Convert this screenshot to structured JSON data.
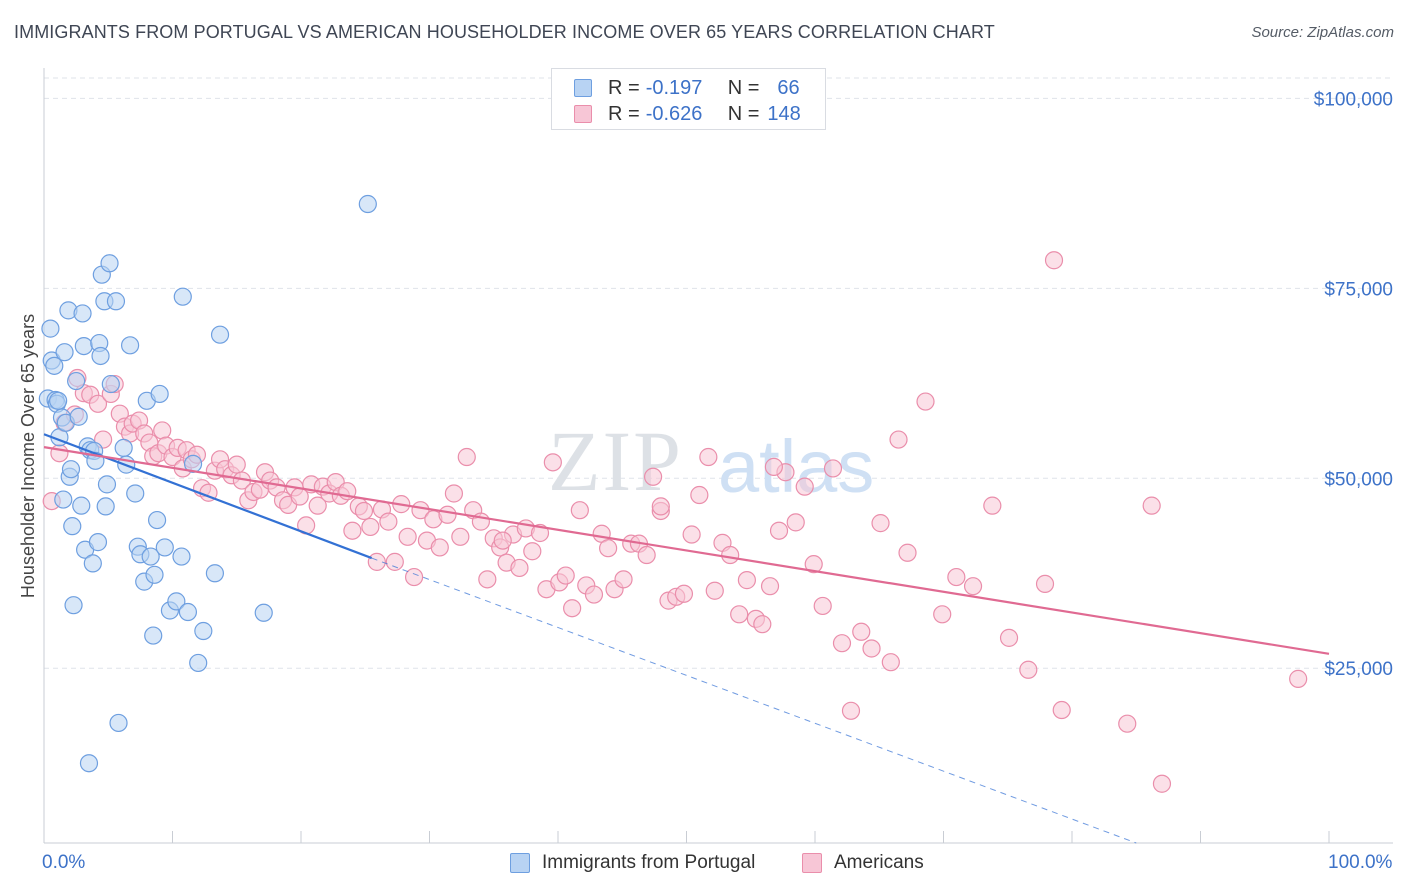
{
  "title": "IMMIGRANTS FROM PORTUGAL VS AMERICAN HOUSEHOLDER INCOME OVER 65 YEARS CORRELATION CHART",
  "source": "Source: ZipAtlas.com",
  "watermark": {
    "zip": "ZIP",
    "atlas": "atlas"
  },
  "legend_top": {
    "rows": [
      {
        "r_label": "R =",
        "r_value": "-0.197",
        "n_label": "N =",
        "n_value": "66"
      },
      {
        "r_label": "R =",
        "r_value": "-0.626",
        "n_label": "N =",
        "n_value": "148"
      }
    ]
  },
  "legend_bottom": {
    "items": [
      {
        "label": "Immigrants from Portugal"
      },
      {
        "label": "Americans"
      }
    ]
  },
  "colors": {
    "blue_fill": "#b8d3f3",
    "blue_stroke": "#6e9fe0",
    "blue_line": "#3371d4",
    "pink_fill": "#f7c6d6",
    "pink_stroke": "#ea8eab",
    "pink_line": "#e06a92",
    "axis_label": "#3d72c8",
    "grid": "#dfe3ea"
  },
  "chart_data": {
    "type": "scatter",
    "title": "IMMIGRANTS FROM PORTUGAL VS AMERICAN HOUSEHOLDER INCOME OVER 65 YEARS CORRELATION CHART",
    "xlabel": "",
    "ylabel": "Householder Income Over 65 years",
    "xlim": [
      0,
      100
    ],
    "ylim": [
      2000,
      104000
    ],
    "x_tick_labels": [
      "0.0%",
      "100.0%"
    ],
    "y_ticks": [
      25000,
      50000,
      75000,
      100000
    ],
    "y_tick_labels": [
      "$25,000",
      "$50,000",
      "$75,000",
      "$100,000"
    ],
    "grid": true,
    "legend_position": "bottom",
    "series": [
      {
        "name": "Immigrants from Portugal",
        "R": -0.197,
        "N": 66,
        "trend": {
          "x": [
            0,
            25.5
          ],
          "y": [
            55800,
            39500
          ],
          "dashed_to": [
            85,
            2000
          ]
        },
        "points": [
          [
            0.3,
            60500
          ],
          [
            0.5,
            69700
          ],
          [
            0.6,
            65500
          ],
          [
            0.8,
            64800
          ],
          [
            0.9,
            60300
          ],
          [
            1.0,
            59800
          ],
          [
            1.1,
            60200
          ],
          [
            1.2,
            55400
          ],
          [
            1.4,
            58000
          ],
          [
            1.5,
            47200
          ],
          [
            1.6,
            66600
          ],
          [
            1.7,
            57300
          ],
          [
            1.9,
            72100
          ],
          [
            2.0,
            50200
          ],
          [
            2.1,
            51200
          ],
          [
            2.2,
            43700
          ],
          [
            2.3,
            33300
          ],
          [
            2.5,
            62800
          ],
          [
            2.7,
            58100
          ],
          [
            2.9,
            46400
          ],
          [
            3.0,
            71700
          ],
          [
            3.1,
            67400
          ],
          [
            3.2,
            40600
          ],
          [
            3.4,
            54200
          ],
          [
            3.5,
            12500
          ],
          [
            3.6,
            53700
          ],
          [
            3.8,
            38800
          ],
          [
            3.9,
            53600
          ],
          [
            4.0,
            52300
          ],
          [
            4.2,
            41600
          ],
          [
            4.3,
            67800
          ],
          [
            4.4,
            66100
          ],
          [
            4.5,
            76800
          ],
          [
            4.7,
            73300
          ],
          [
            4.8,
            46300
          ],
          [
            4.9,
            49200
          ],
          [
            5.1,
            78300
          ],
          [
            5.2,
            62400
          ],
          [
            5.6,
            73300
          ],
          [
            5.8,
            17800
          ],
          [
            6.2,
            54000
          ],
          [
            6.4,
            51800
          ],
          [
            6.7,
            67500
          ],
          [
            7.1,
            48000
          ],
          [
            7.3,
            41000
          ],
          [
            7.5,
            40000
          ],
          [
            7.8,
            36400
          ],
          [
            8.0,
            60200
          ],
          [
            8.3,
            39700
          ],
          [
            8.5,
            29300
          ],
          [
            8.6,
            37300
          ],
          [
            8.8,
            44500
          ],
          [
            9.0,
            61100
          ],
          [
            9.4,
            40900
          ],
          [
            9.8,
            32600
          ],
          [
            10.3,
            33800
          ],
          [
            10.7,
            39700
          ],
          [
            11.2,
            32400
          ],
          [
            11.6,
            51900
          ],
          [
            12.0,
            25700
          ],
          [
            12.4,
            29900
          ],
          [
            13.3,
            37500
          ],
          [
            13.7,
            68900
          ],
          [
            17.1,
            32300
          ],
          [
            25.2,
            86100
          ],
          [
            10.8,
            73900
          ]
        ]
      },
      {
        "name": "Americans",
        "R": -0.626,
        "N": 148,
        "trend": {
          "x": [
            0,
            100
          ],
          "y": [
            54100,
            26900
          ]
        },
        "points": [
          [
            0.6,
            47000
          ],
          [
            1.2,
            53300
          ],
          [
            1.6,
            57300
          ],
          [
            2.4,
            58400
          ],
          [
            2.6,
            63200
          ],
          [
            3.1,
            61200
          ],
          [
            3.6,
            61000
          ],
          [
            4.2,
            59800
          ],
          [
            4.6,
            55100
          ],
          [
            5.2,
            61100
          ],
          [
            5.5,
            62400
          ],
          [
            5.9,
            58500
          ],
          [
            6.3,
            56800
          ],
          [
            6.7,
            55900
          ],
          [
            6.9,
            57200
          ],
          [
            7.4,
            57600
          ],
          [
            7.8,
            55900
          ],
          [
            8.2,
            54700
          ],
          [
            8.5,
            52900
          ],
          [
            8.9,
            53300
          ],
          [
            9.2,
            56300
          ],
          [
            9.5,
            54300
          ],
          [
            10.0,
            52800
          ],
          [
            10.4,
            54000
          ],
          [
            10.8,
            51300
          ],
          [
            11.1,
            53700
          ],
          [
            11.5,
            52500
          ],
          [
            11.9,
            53100
          ],
          [
            12.3,
            48700
          ],
          [
            12.8,
            48100
          ],
          [
            13.3,
            51000
          ],
          [
            13.7,
            52500
          ],
          [
            14.1,
            51200
          ],
          [
            14.6,
            50400
          ],
          [
            15.0,
            51800
          ],
          [
            15.4,
            49700
          ],
          [
            15.9,
            47100
          ],
          [
            16.3,
            48200
          ],
          [
            16.8,
            48500
          ],
          [
            17.2,
            50800
          ],
          [
            17.6,
            49700
          ],
          [
            18.1,
            48800
          ],
          [
            18.6,
            47100
          ],
          [
            19.0,
            46500
          ],
          [
            19.5,
            48800
          ],
          [
            19.9,
            47600
          ],
          [
            20.4,
            43800
          ],
          [
            20.8,
            49200
          ],
          [
            21.3,
            46400
          ],
          [
            21.7,
            48900
          ],
          [
            22.2,
            48000
          ],
          [
            22.7,
            49500
          ],
          [
            23.1,
            47700
          ],
          [
            23.6,
            48300
          ],
          [
            24.0,
            43100
          ],
          [
            24.5,
            46300
          ],
          [
            24.9,
            45700
          ],
          [
            25.4,
            43600
          ],
          [
            25.9,
            39000
          ],
          [
            26.3,
            45900
          ],
          [
            26.8,
            44300
          ],
          [
            27.3,
            39000
          ],
          [
            27.8,
            46600
          ],
          [
            28.3,
            42300
          ],
          [
            28.8,
            37000
          ],
          [
            29.3,
            45800
          ],
          [
            29.8,
            41800
          ],
          [
            30.3,
            44600
          ],
          [
            30.8,
            40900
          ],
          [
            31.4,
            45200
          ],
          [
            31.9,
            48000
          ],
          [
            32.4,
            42300
          ],
          [
            32.9,
            52800
          ],
          [
            33.4,
            45800
          ],
          [
            34.0,
            44300
          ],
          [
            34.5,
            36700
          ],
          [
            35.0,
            42100
          ],
          [
            35.5,
            40900
          ],
          [
            36.0,
            38900
          ],
          [
            36.5,
            42600
          ],
          [
            37.0,
            38200
          ],
          [
            37.5,
            43400
          ],
          [
            38.0,
            40400
          ],
          [
            38.6,
            42800
          ],
          [
            39.1,
            35400
          ],
          [
            39.6,
            52100
          ],
          [
            40.1,
            36300
          ],
          [
            40.6,
            37200
          ],
          [
            41.1,
            32900
          ],
          [
            41.7,
            45800
          ],
          [
            42.2,
            35900
          ],
          [
            42.8,
            34700
          ],
          [
            43.4,
            42700
          ],
          [
            43.9,
            40800
          ],
          [
            44.4,
            35400
          ],
          [
            45.1,
            36700
          ],
          [
            45.7,
            41400
          ],
          [
            46.3,
            41400
          ],
          [
            46.9,
            39900
          ],
          [
            47.4,
            50200
          ],
          [
            48.0,
            45700
          ],
          [
            48.6,
            33900
          ],
          [
            49.2,
            34400
          ],
          [
            49.8,
            34800
          ],
          [
            50.4,
            42600
          ],
          [
            51.0,
            47800
          ],
          [
            51.7,
            52800
          ],
          [
            52.2,
            35200
          ],
          [
            52.8,
            41500
          ],
          [
            53.4,
            39900
          ],
          [
            54.1,
            32100
          ],
          [
            54.7,
            36600
          ],
          [
            55.4,
            31500
          ],
          [
            55.9,
            30800
          ],
          [
            56.5,
            35800
          ],
          [
            57.2,
            43100
          ],
          [
            57.7,
            50800
          ],
          [
            58.5,
            44200
          ],
          [
            59.2,
            48900
          ],
          [
            59.9,
            38700
          ],
          [
            60.6,
            33200
          ],
          [
            61.4,
            51300
          ],
          [
            62.1,
            28300
          ],
          [
            62.8,
            19400
          ],
          [
            63.6,
            29800
          ],
          [
            64.4,
            27600
          ],
          [
            65.1,
            44100
          ],
          [
            65.9,
            25800
          ],
          [
            66.5,
            55100
          ],
          [
            67.2,
            40200
          ],
          [
            68.6,
            60100
          ],
          [
            69.9,
            32100
          ],
          [
            71.0,
            37000
          ],
          [
            72.3,
            35800
          ],
          [
            73.8,
            46400
          ],
          [
            75.1,
            29000
          ],
          [
            76.6,
            24800
          ],
          [
            77.9,
            36100
          ],
          [
            78.6,
            78700
          ],
          [
            79.2,
            19500
          ],
          [
            84.3,
            17700
          ],
          [
            86.2,
            46400
          ],
          [
            87.0,
            9800
          ],
          [
            97.6,
            23600
          ],
          [
            56.8,
            51500
          ],
          [
            48.0,
            46300
          ],
          [
            35.7,
            41800
          ]
        ]
      }
    ]
  }
}
